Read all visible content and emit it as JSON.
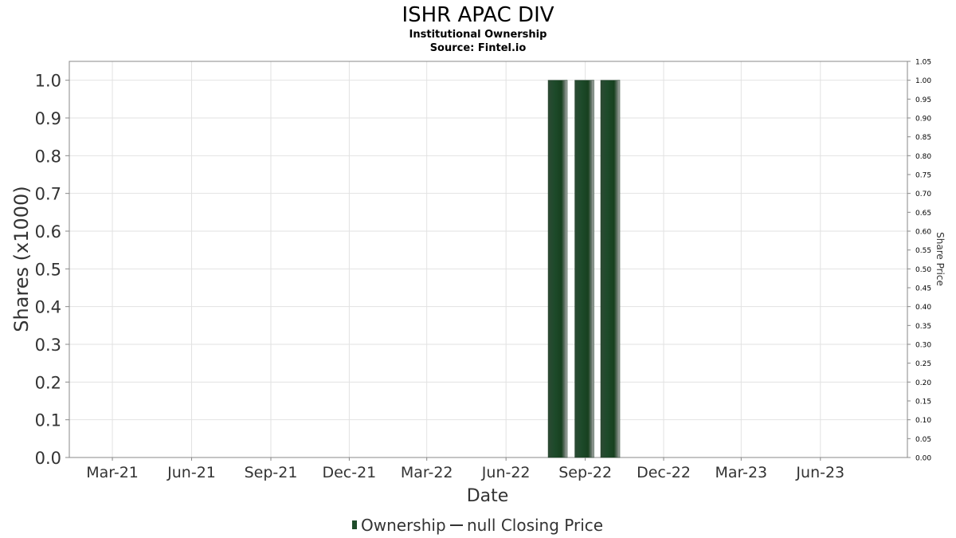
{
  "chart_data": {
    "type": "bar",
    "title": "ISHR APAC DIV",
    "subtitle": "Institutional Ownership",
    "source": "Source: Fintel.io",
    "xlabel": "Date",
    "ylabel": "Shares (x1000)",
    "y2label": "Share Price",
    "ylim": [
      0,
      1.05
    ],
    "y_ticks": [
      "0.0",
      "0.1",
      "0.2",
      "0.3",
      "0.4",
      "0.5",
      "0.6",
      "0.7",
      "0.8",
      "0.9",
      "1.0"
    ],
    "y2lim": [
      0,
      1.05
    ],
    "y2_ticks": [
      "0.00",
      "0.05",
      "0.10",
      "0.15",
      "0.20",
      "0.25",
      "0.30",
      "0.35",
      "0.40",
      "0.45",
      "0.50",
      "0.55",
      "0.60",
      "0.65",
      "0.70",
      "0.75",
      "0.80",
      "0.85",
      "0.90",
      "0.95",
      "1.00",
      "1.05"
    ],
    "x_ticks": [
      "Mar-21",
      "Jun-21",
      "Sep-21",
      "Dec-21",
      "Mar-22",
      "Jun-22",
      "Sep-22",
      "Dec-22",
      "Mar-23",
      "Jun-23"
    ],
    "xlim": [
      "2021-01-10",
      "2023-09-10"
    ],
    "series": [
      {
        "name": "Ownership",
        "color": "#1f4d2b",
        "x": [
          "2022-07-31",
          "2022-08-31",
          "2022-09-30"
        ],
        "values": [
          1.0,
          1.0,
          1.0
        ]
      },
      {
        "name": "null Closing Price",
        "type": "line",
        "color": "#333333",
        "values": []
      }
    ],
    "grid": true,
    "legend": "bottom-center"
  }
}
